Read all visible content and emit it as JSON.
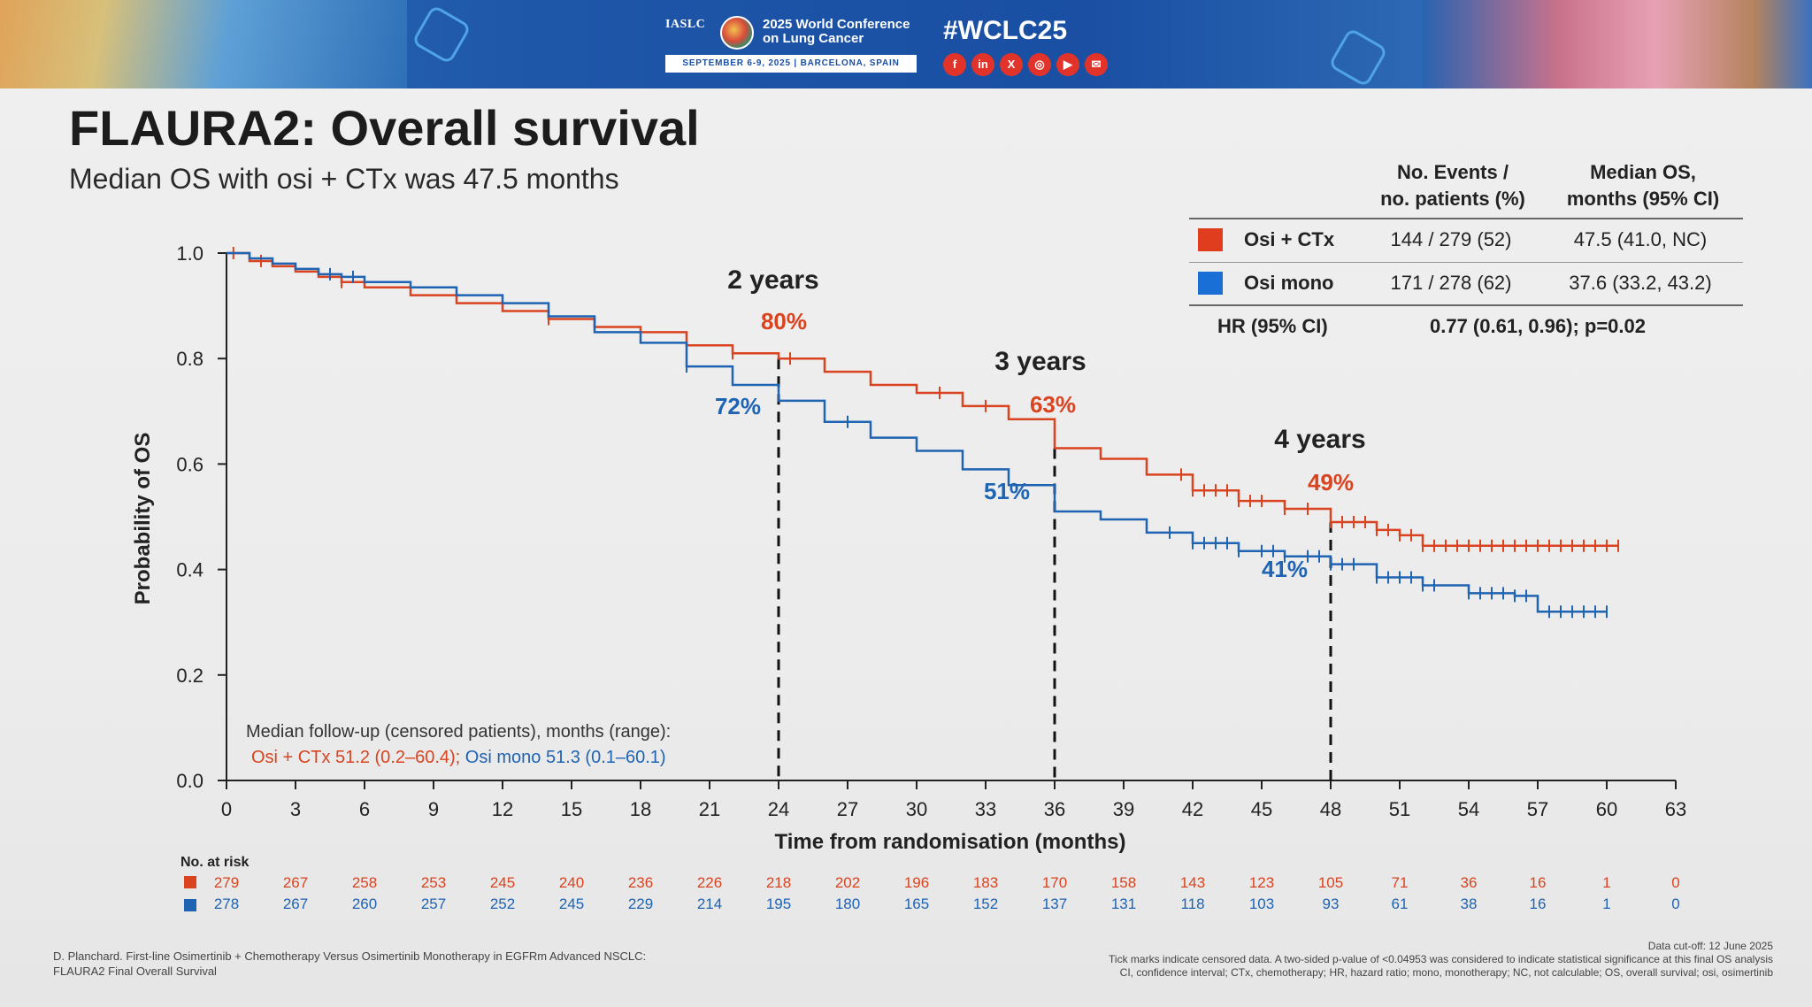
{
  "banner": {
    "org": "IASLC",
    "conference_name": "2025 World Conference on Lung Cancer",
    "dates": "SEPTEMBER 6-9, 2025  |  BARCELONA, SPAIN",
    "hashtag": "#WCLC25",
    "social_icons": [
      "facebook-icon",
      "linkedin-icon",
      "x-icon",
      "instagram-icon",
      "youtube-icon",
      "wechat-icon"
    ],
    "social_glyphs": [
      "f",
      "in",
      "X",
      "◎",
      "▶",
      "✉"
    ]
  },
  "slide": {
    "title": "FLAURA2: Overall survival",
    "subtitle": "Median OS with osi + CTx was 47.5 months"
  },
  "legend_table": {
    "col1_header_line1": "No. Events /",
    "col1_header_line2": "no. patients (%)",
    "col2_header_line1": "Median OS,",
    "col2_header_line2": "months (95% CI)",
    "rows": [
      {
        "label": "Osi + CTx",
        "color": "#e03c1e",
        "events": "144 / 279 (52)",
        "median": "47.5 (41.0, NC)"
      },
      {
        "label": "Osi mono",
        "color": "#1a6fd6",
        "events": "171 / 278 (62)",
        "median": "37.6 (33.2, 43.2)"
      }
    ],
    "hr_label": "HR (95% CI)",
    "hr_value": "0.77 (0.61, 0.96); p=0.02"
  },
  "followup": {
    "line1": "Median follow-up (censored patients), months (range):",
    "osi_ctx": "Osi + CTx 51.2 (0.2–60.4);",
    "osi_mono": "Osi mono 51.3 (0.1–60.1)"
  },
  "risk_table": {
    "title": "No. at risk",
    "times": [
      0,
      3,
      6,
      9,
      12,
      15,
      18,
      21,
      24,
      27,
      30,
      33,
      36,
      39,
      42,
      45,
      48,
      51,
      54,
      57,
      60,
      63
    ],
    "osi_ctx": [
      279,
      267,
      258,
      253,
      245,
      240,
      236,
      226,
      218,
      202,
      196,
      183,
      170,
      158,
      143,
      123,
      105,
      71,
      36,
      16,
      1,
      0
    ],
    "osi_mono": [
      278,
      267,
      260,
      257,
      252,
      245,
      229,
      214,
      195,
      180,
      165,
      152,
      137,
      131,
      118,
      103,
      93,
      61,
      38,
      16,
      1,
      0
    ]
  },
  "footer": {
    "left_line1": "D. Planchard. First-line Osimertinib + Chemotherapy Versus Osimertinib Monotherapy in EGFRm Advanced NSCLC:",
    "left_line2": "FLAURA2 Final Overall Survival",
    "cutoff": "Data cut-off: 12 June 2025",
    "note_line1": "Tick marks indicate censored data. A two-sided p-value of <0.04953 was considered to indicate statistical significance at this final OS analysis",
    "note_line2": "CI, confidence interval; CTx, chemotherapy; HR, hazard ratio; mono, monotherapy; NC, not calculable; OS, overall survival; osi, osimertinib"
  },
  "chart_data": {
    "type": "line",
    "step": true,
    "xlabel": "Time from randomisation (months)",
    "ylabel": "Probability of OS",
    "xlim": [
      0,
      63
    ],
    "ylim": [
      0,
      1.0
    ],
    "xticks": [
      0,
      3,
      6,
      9,
      12,
      15,
      18,
      21,
      24,
      27,
      30,
      33,
      36,
      39,
      42,
      45,
      48,
      51,
      54,
      57,
      60,
      63
    ],
    "yticks": [
      0.0,
      0.2,
      0.4,
      0.6,
      0.8,
      1.0
    ],
    "ytick_labels": [
      "0.0",
      "0.2",
      "0.4",
      "0.6",
      "0.8",
      "1.0"
    ],
    "series": [
      {
        "name": "Osi + CTx",
        "color": "#d9431f",
        "points": [
          [
            0,
            1.0
          ],
          [
            1,
            0.985
          ],
          [
            2,
            0.975
          ],
          [
            3,
            0.965
          ],
          [
            4,
            0.955
          ],
          [
            5,
            0.945
          ],
          [
            6,
            0.935
          ],
          [
            8,
            0.92
          ],
          [
            10,
            0.905
          ],
          [
            12,
            0.89
          ],
          [
            14,
            0.875
          ],
          [
            16,
            0.86
          ],
          [
            18,
            0.85
          ],
          [
            20,
            0.825
          ],
          [
            22,
            0.81
          ],
          [
            24,
            0.8
          ],
          [
            26,
            0.775
          ],
          [
            28,
            0.75
          ],
          [
            30,
            0.735
          ],
          [
            32,
            0.71
          ],
          [
            34,
            0.685
          ],
          [
            36,
            0.63
          ],
          [
            38,
            0.61
          ],
          [
            40,
            0.58
          ],
          [
            42,
            0.55
          ],
          [
            44,
            0.53
          ],
          [
            46,
            0.515
          ],
          [
            48,
            0.49
          ],
          [
            50,
            0.475
          ],
          [
            51,
            0.465
          ],
          [
            52,
            0.445
          ],
          [
            54,
            0.445
          ],
          [
            57,
            0.445
          ],
          [
            60.5,
            0.445
          ]
        ],
        "censor_x": [
          0.3,
          1.5,
          5,
          14,
          20,
          22,
          24.5,
          31,
          33,
          41.5,
          42,
          42.5,
          43,
          43.5,
          44,
          44.5,
          45,
          46,
          47,
          48,
          48.5,
          49,
          49.5,
          50,
          50.5,
          51,
          51.5,
          52,
          52.5,
          53,
          53.5,
          54,
          54.5,
          55,
          55.5,
          56,
          56.5,
          57,
          57.5,
          58,
          58.5,
          59,
          59.5,
          60,
          60.5
        ]
      },
      {
        "name": "Osi mono",
        "color": "#1f63b3",
        "points": [
          [
            0,
            1.0
          ],
          [
            1,
            0.99
          ],
          [
            2,
            0.98
          ],
          [
            3,
            0.97
          ],
          [
            4,
            0.96
          ],
          [
            5,
            0.955
          ],
          [
            6,
            0.945
          ],
          [
            8,
            0.935
          ],
          [
            10,
            0.92
          ],
          [
            12,
            0.905
          ],
          [
            14,
            0.88
          ],
          [
            16,
            0.85
          ],
          [
            18,
            0.83
          ],
          [
            20,
            0.785
          ],
          [
            22,
            0.75
          ],
          [
            24,
            0.72
          ],
          [
            26,
            0.68
          ],
          [
            28,
            0.65
          ],
          [
            30,
            0.625
          ],
          [
            32,
            0.59
          ],
          [
            34,
            0.56
          ],
          [
            36,
            0.51
          ],
          [
            38,
            0.495
          ],
          [
            40,
            0.47
          ],
          [
            42,
            0.45
          ],
          [
            44,
            0.435
          ],
          [
            46,
            0.425
          ],
          [
            48,
            0.41
          ],
          [
            50,
            0.385
          ],
          [
            52,
            0.37
          ],
          [
            54,
            0.355
          ],
          [
            56,
            0.35
          ],
          [
            57,
            0.32
          ],
          [
            60,
            0.32
          ]
        ],
        "censor_x": [
          4.5,
          5.5,
          20,
          27,
          41,
          42,
          42.5,
          43,
          43.5,
          44,
          45,
          45.5,
          46,
          47,
          47.5,
          48,
          48.5,
          49,
          50,
          50.5,
          51,
          51.5,
          52,
          52.5,
          54,
          54.5,
          55,
          55.5,
          56,
          56.5,
          57.5,
          58,
          58.5,
          59,
          59.5,
          60
        ]
      }
    ],
    "annotations": [
      {
        "x": 24,
        "label": "2 years",
        "values": [
          {
            "series": "Osi + CTx",
            "text": "80%"
          },
          {
            "series": "Osi mono",
            "text": "72%"
          }
        ]
      },
      {
        "x": 36,
        "label": "3 years",
        "values": [
          {
            "series": "Osi + CTx",
            "text": "63%"
          },
          {
            "series": "Osi mono",
            "text": "51%"
          }
        ]
      },
      {
        "x": 48,
        "label": "4 years",
        "values": [
          {
            "series": "Osi + CTx",
            "text": "49%"
          },
          {
            "series": "Osi mono",
            "text": "41%"
          }
        ]
      }
    ],
    "grid": false
  }
}
